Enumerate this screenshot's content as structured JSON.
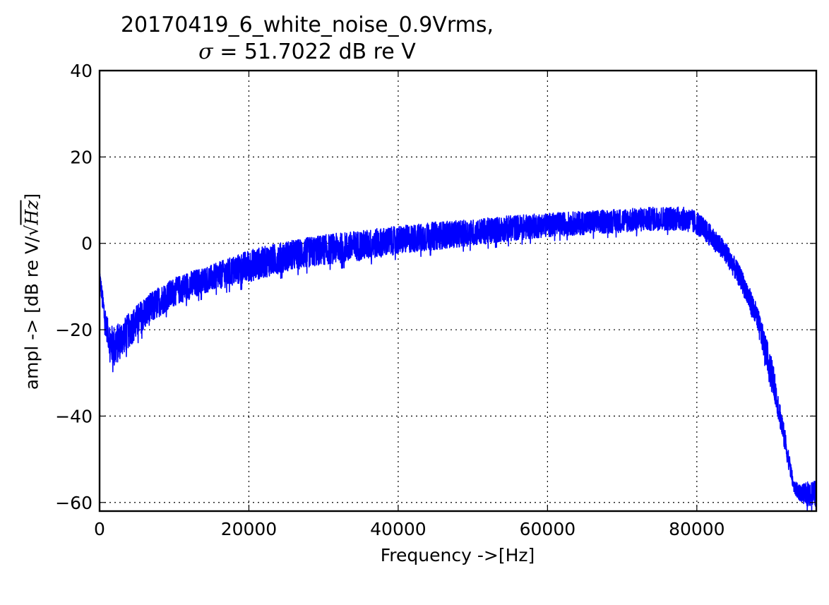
{
  "chart_data": {
    "type": "line",
    "title_line1": "20170419_6_white_noise_0.9Vrms,",
    "title_sigma_symbol": "σ",
    "title_line2_rest": " = 51.7022 dB re V",
    "xlabel": "Frequency ->[Hz]",
    "ylabel_prefix": "ampl -> [dB re V/√",
    "ylabel_hz": "Hz",
    "ylabel_suffix": "]",
    "xlim": [
      0,
      96000
    ],
    "ylim": [
      -62,
      40
    ],
    "xticks": [
      0,
      20000,
      40000,
      60000,
      80000
    ],
    "xtick_labels": [
      "0",
      "20000",
      "40000",
      "60000",
      "80000"
    ],
    "yticks": [
      40,
      20,
      0,
      -20,
      -40,
      -60
    ],
    "ytick_labels": [
      "40",
      "20",
      "0",
      "−20",
      "−40",
      "−60"
    ],
    "grid": true,
    "grid_style": "dotted",
    "series": [
      {
        "color": "#0000ff",
        "envelope": {
          "x": [
            0,
            500,
            1000,
            1500,
            2000,
            3000,
            4000,
            6000,
            8000,
            10000,
            12000,
            15000,
            20000,
            25000,
            30000,
            35000,
            40000,
            45000,
            50000,
            55000,
            60000,
            65000,
            70000,
            75000,
            78000,
            80000,
            82000,
            84000,
            86000,
            88000,
            90000,
            92000,
            93000,
            94000,
            95000,
            96000
          ],
          "upper": [
            -6,
            -12,
            -17,
            -19,
            -19,
            -18,
            -16,
            -12.5,
            -10,
            -8,
            -6.5,
            -5,
            -1.5,
            0.5,
            2,
            3,
            4,
            5,
            5.5,
            6.5,
            7,
            7.5,
            8,
            8.5,
            8.5,
            7.5,
            4,
            0,
            -6,
            -14,
            -26,
            -45,
            -55,
            -56,
            -55,
            -55
          ],
          "lower": [
            -8,
            -18,
            -23,
            -27,
            -29,
            -26,
            -24,
            -20,
            -17,
            -14.5,
            -13,
            -11,
            -9,
            -6.5,
            -5,
            -4,
            -2.5,
            -1.5,
            -0.5,
            0.5,
            1.5,
            2,
            2.5,
            3,
            3,
            2,
            -1,
            -5,
            -11,
            -20,
            -33,
            -50,
            -58,
            -60,
            -61,
            -61
          ]
        }
      }
    ]
  }
}
